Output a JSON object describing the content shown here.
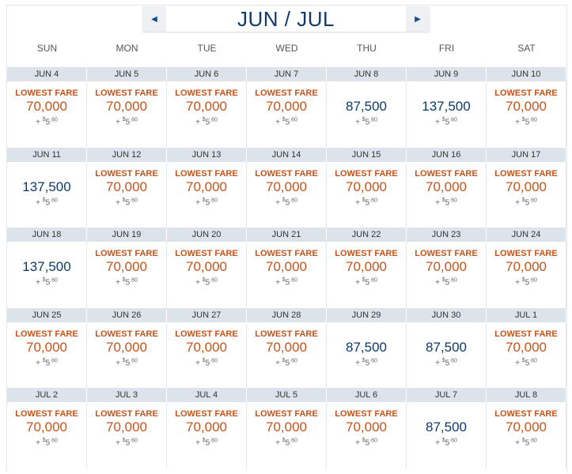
{
  "header": {
    "title": "JUN / JUL",
    "prev_icon": "triangle-left-icon",
    "next_icon": "triangle-right-icon"
  },
  "days": [
    "SUN",
    "MON",
    "TUE",
    "WED",
    "THU",
    "FRI",
    "SAT"
  ],
  "lowest_label": "LOWEST FARE",
  "colors": {
    "lowest": "#c6531a",
    "regular": "#0e3a6b",
    "date_bar": "#dde3ea"
  },
  "weeks": [
    [
      {
        "date": "JUN 4",
        "miles": "70,000",
        "lowest": true
      },
      {
        "date": "JUN 5",
        "miles": "70,000",
        "lowest": true
      },
      {
        "date": "JUN 6",
        "miles": "70,000",
        "lowest": true
      },
      {
        "date": "JUN 7",
        "miles": "70,000",
        "lowest": true
      },
      {
        "date": "JUN 8",
        "miles": "87,500",
        "lowest": false
      },
      {
        "date": "JUN 9",
        "miles": "137,500",
        "lowest": false
      },
      {
        "date": "JUN 10",
        "miles": "70,000",
        "lowest": true
      }
    ],
    [
      {
        "date": "JUN 11",
        "miles": "137,500",
        "lowest": false
      },
      {
        "date": "JUN 12",
        "miles": "70,000",
        "lowest": true
      },
      {
        "date": "JUN 13",
        "miles": "70,000",
        "lowest": true
      },
      {
        "date": "JUN 14",
        "miles": "70,000",
        "lowest": true
      },
      {
        "date": "JUN 15",
        "miles": "70,000",
        "lowest": true
      },
      {
        "date": "JUN 16",
        "miles": "70,000",
        "lowest": true
      },
      {
        "date": "JUN 17",
        "miles": "70,000",
        "lowest": true
      }
    ],
    [
      {
        "date": "JUN 18",
        "miles": "137,500",
        "lowest": false
      },
      {
        "date": "JUN 19",
        "miles": "70,000",
        "lowest": true
      },
      {
        "date": "JUN 20",
        "miles": "70,000",
        "lowest": true
      },
      {
        "date": "JUN 21",
        "miles": "70,000",
        "lowest": true
      },
      {
        "date": "JUN 22",
        "miles": "70,000",
        "lowest": true
      },
      {
        "date": "JUN 23",
        "miles": "70,000",
        "lowest": true
      },
      {
        "date": "JUN 24",
        "miles": "70,000",
        "lowest": true
      }
    ],
    [
      {
        "date": "JUN 25",
        "miles": "70,000",
        "lowest": true
      },
      {
        "date": "JUN 26",
        "miles": "70,000",
        "lowest": true
      },
      {
        "date": "JUN 27",
        "miles": "70,000",
        "lowest": true
      },
      {
        "date": "JUN 28",
        "miles": "70,000",
        "lowest": true
      },
      {
        "date": "JUN 29",
        "miles": "87,500",
        "lowest": false
      },
      {
        "date": "JUN 30",
        "miles": "87,500",
        "lowest": false
      },
      {
        "date": "JUL 1",
        "miles": "70,000",
        "lowest": true
      }
    ],
    [
      {
        "date": "JUL 2",
        "miles": "70,000",
        "lowest": true
      },
      {
        "date": "JUL 3",
        "miles": "70,000",
        "lowest": true
      },
      {
        "date": "JUL 4",
        "miles": "70,000",
        "lowest": true
      },
      {
        "date": "JUL 5",
        "miles": "70,000",
        "lowest": true
      },
      {
        "date": "JUL 6",
        "miles": "70,000",
        "lowest": true
      },
      {
        "date": "JUL 7",
        "miles": "87,500",
        "lowest": false
      },
      {
        "date": "JUL 8",
        "miles": "70,000",
        "lowest": true
      }
    ]
  ],
  "tax": {
    "plus": "+",
    "currency": "$",
    "dollars": "5",
    "cents": ".60"
  }
}
